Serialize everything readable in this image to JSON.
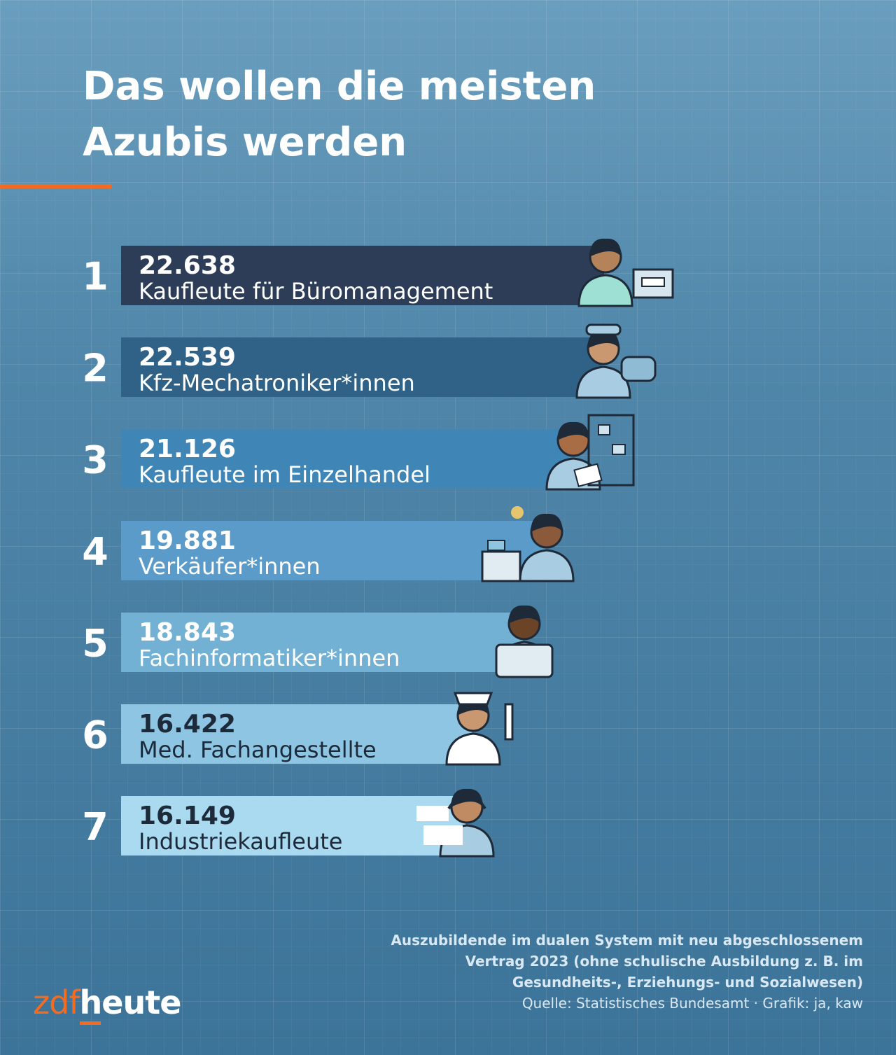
{
  "title_lines": [
    "Das wollen die meisten",
    "Azubis werden"
  ],
  "accent_color": "#f26b21",
  "chart_data": {
    "type": "bar",
    "orientation": "horizontal",
    "title": "Das wollen die meisten Azubis werden",
    "categories": [
      "Kaufleute für Büromanagement",
      "Kfz-Mechatroniker*innen",
      "Kaufleute im Einzelhandel",
      "Verkäufer*innen",
      "Fachinformatiker*innen",
      "Med. Fachangestellte",
      "Industriekaufleute"
    ],
    "ranks": [
      "1",
      "2",
      "3",
      "4",
      "5",
      "6",
      "7"
    ],
    "values": [
      22638,
      22539,
      21126,
      19881,
      18843,
      16422,
      16149
    ],
    "value_labels": [
      "22.638",
      "22.539",
      "21.126",
      "19.881",
      "18.843",
      "16.422",
      "16.149"
    ],
    "bar_colors": [
      "#2d3d57",
      "#2f6286",
      "#3f85b6",
      "#5a9bc9",
      "#72b1d4",
      "#8ec5e2",
      "#aadaf0"
    ],
    "text_colors": [
      "#ffffff",
      "#ffffff",
      "#ffffff",
      "#ffffff",
      "#ffffff",
      "#1c2a3a",
      "#1c2a3a"
    ],
    "icons": [
      "office-worker-icon",
      "mechanic-icon",
      "retail-clerk-icon",
      "cashier-icon",
      "programmer-icon",
      "medical-assistant-icon",
      "call-center-icon"
    ],
    "grid": false,
    "legend": "none"
  },
  "footnote_lines": [
    "Auszubildende im dualen System mit neu abgeschlossenem",
    "Vertrag 2023 (ohne schulische Ausbildung z. B. im",
    "Gesundheits-, Erziehungs- und Sozialwesen)"
  ],
  "source": "Quelle: Statistisches Bundesamt · Grafik: ja, kaw",
  "logo": {
    "part1": "zdf",
    "part2": "heute"
  }
}
